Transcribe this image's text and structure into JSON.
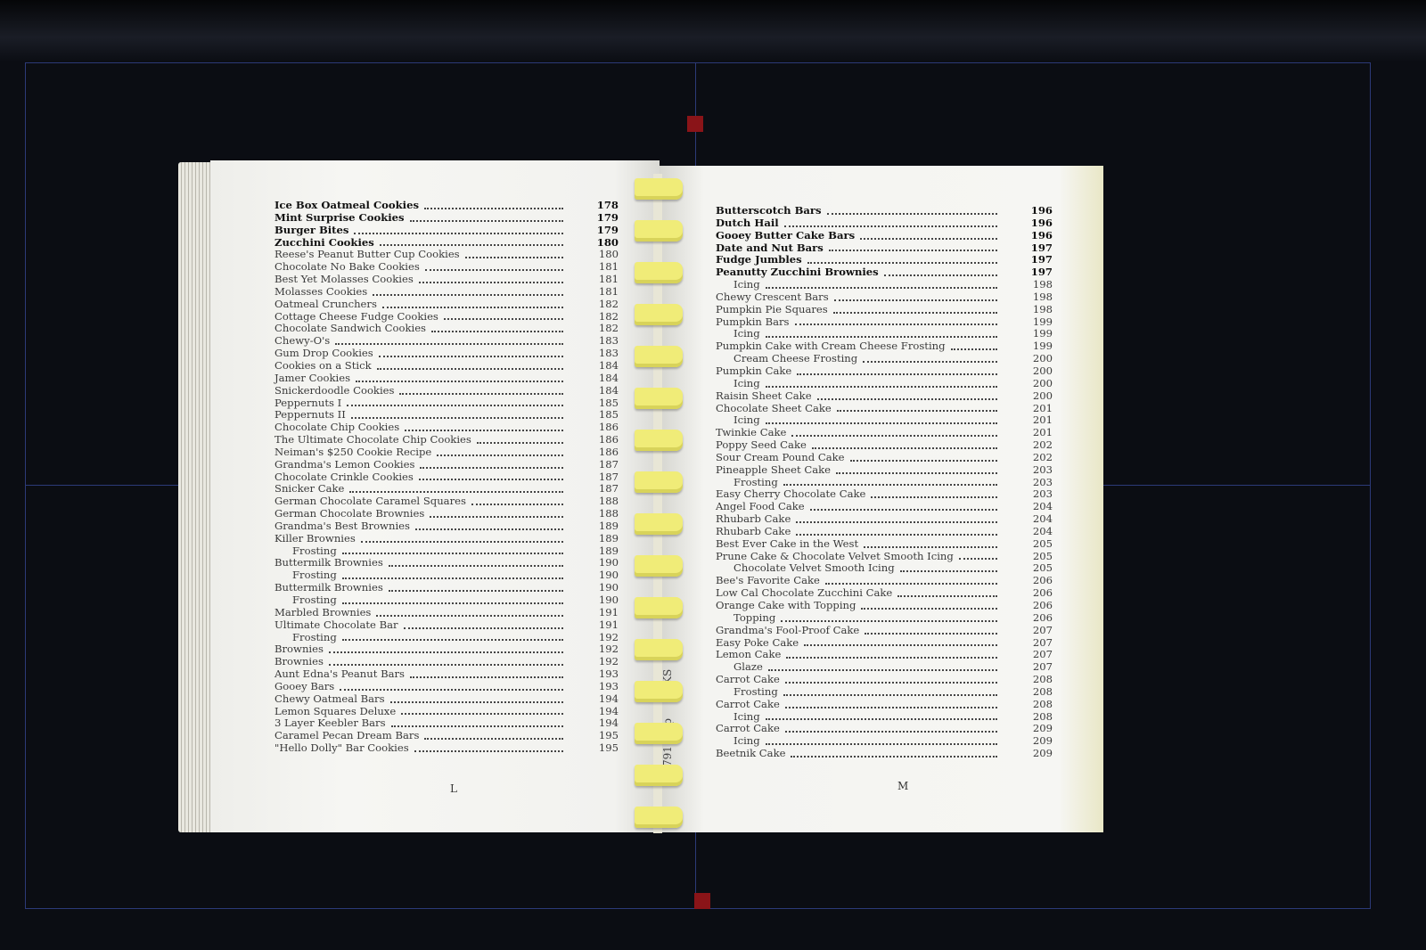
{
  "left_page": {
    "letter": "L",
    "entries": [
      {
        "title": "Ice Box Oatmeal Cookies",
        "page": "178"
      },
      {
        "title": "Mint Surprise Cookies",
        "page": "179"
      },
      {
        "title": "Burger Bites",
        "page": "179"
      },
      {
        "title": "Zucchini Cookies",
        "page": "180"
      },
      {
        "title": "Reese's Peanut Butter Cup Cookies",
        "page": "180"
      },
      {
        "title": "Chocolate No Bake Cookies",
        "page": "181"
      },
      {
        "title": "Best Yet Molasses Cookies",
        "page": "181"
      },
      {
        "title": "Molasses Cookies",
        "page": "181"
      },
      {
        "title": "Oatmeal Crunchers",
        "page": "182"
      },
      {
        "title": "Cottage Cheese Fudge Cookies",
        "page": "182"
      },
      {
        "title": "Chocolate Sandwich Cookies",
        "page": "182"
      },
      {
        "title": "Chewy-O's",
        "page": "183"
      },
      {
        "title": "Gum Drop Cookies",
        "page": "183"
      },
      {
        "title": "Cookies on a Stick",
        "page": "184"
      },
      {
        "title": "Jamer Cookies",
        "page": "184"
      },
      {
        "title": "Snickerdoodle Cookies",
        "page": "184"
      },
      {
        "title": "Peppernuts I",
        "page": "185"
      },
      {
        "title": "Peppernuts II",
        "page": "185"
      },
      {
        "title": "Chocolate Chip Cookies",
        "page": "186"
      },
      {
        "title": "The Ultimate Chocolate Chip Cookies",
        "page": "186"
      },
      {
        "title": "Neiman's $250 Cookie Recipe",
        "page": "186"
      },
      {
        "title": "Grandma's Lemon Cookies",
        "page": "187"
      },
      {
        "title": "Chocolate Crinkle Cookies",
        "page": "187"
      },
      {
        "title": "Snicker Cake",
        "page": "187"
      },
      {
        "title": "German Chocolate Caramel Squares",
        "page": "188"
      },
      {
        "title": "German Chocolate Brownies",
        "page": "188"
      },
      {
        "title": "Grandma's Best Brownies",
        "page": "189"
      },
      {
        "title": "Killer Brownies",
        "page": "189"
      },
      {
        "title": "Frosting",
        "page": "189",
        "sub": true
      },
      {
        "title": "Buttermilk Brownies",
        "page": "190"
      },
      {
        "title": "Frosting",
        "page": "190",
        "sub": true
      },
      {
        "title": "Buttermilk Brownies",
        "page": "190"
      },
      {
        "title": "Frosting",
        "page": "190",
        "sub": true
      },
      {
        "title": "Marbled Brownies",
        "page": "191"
      },
      {
        "title": "Ultimate Chocolate Bar",
        "page": "191"
      },
      {
        "title": "Frosting",
        "page": "192",
        "sub": true
      },
      {
        "title": "Brownies",
        "page": "192"
      },
      {
        "title": "Brownies",
        "page": "192"
      },
      {
        "title": "Aunt Edna's Peanut Bars",
        "page": "193"
      },
      {
        "title": "Gooey Bars",
        "page": "193"
      },
      {
        "title": "Chewy Oatmeal Bars",
        "page": "194"
      },
      {
        "title": "Lemon Squares Deluxe",
        "page": "194"
      },
      {
        "title": "3 Layer Keebler Bars",
        "page": "194"
      },
      {
        "title": "Caramel Pecan Dream Bars",
        "page": "195"
      },
      {
        "title": "\"Hello Dolly\" Bar Cookies",
        "page": "195"
      }
    ]
  },
  "right_page": {
    "letter": "M",
    "entries": [
      {
        "title": "Butterscotch Bars",
        "page": "196"
      },
      {
        "title": "Dutch Hail",
        "page": "196"
      },
      {
        "title": "Gooey Butter Cake Bars",
        "page": "196"
      },
      {
        "title": "Date and Nut Bars",
        "page": "197"
      },
      {
        "title": "Fudge Jumbles",
        "page": "197"
      },
      {
        "title": "Peanutty Zucchini Brownies",
        "page": "197"
      },
      {
        "title": "Icing",
        "page": "198",
        "sub": true
      },
      {
        "title": "Chewy Crescent Bars",
        "page": "198"
      },
      {
        "title": "Pumpkin Pie Squares",
        "page": "198"
      },
      {
        "title": "Pumpkin Bars",
        "page": "199"
      },
      {
        "title": "Icing",
        "page": "199",
        "sub": true
      },
      {
        "title": "Pumpkin Cake with Cream Cheese Frosting",
        "page": "199"
      },
      {
        "title": "Cream Cheese Frosting",
        "page": "200",
        "sub": true
      },
      {
        "title": "Pumpkin Cake",
        "page": "200"
      },
      {
        "title": "Icing",
        "page": "200",
        "sub": true
      },
      {
        "title": "Raisin Sheet Cake",
        "page": "200"
      },
      {
        "title": "Chocolate Sheet Cake",
        "page": "201"
      },
      {
        "title": "Icing",
        "page": "201",
        "sub": true
      },
      {
        "title": "Twinkie Cake",
        "page": "201"
      },
      {
        "title": "Poppy Seed Cake",
        "page": "202"
      },
      {
        "title": "Sour Cream Pound Cake",
        "page": "202"
      },
      {
        "title": "Pineapple Sheet Cake",
        "page": "203"
      },
      {
        "title": "Frosting",
        "page": "203",
        "sub": true
      },
      {
        "title": "Easy Cherry Chocolate Cake",
        "page": "203"
      },
      {
        "title": "Angel Food Cake",
        "page": "204"
      },
      {
        "title": "Rhubarb Cake",
        "page": "204"
      },
      {
        "title": "Rhubarb Cake",
        "page": "204"
      },
      {
        "title": "Best Ever Cake  in the West",
        "page": "205"
      },
      {
        "title": "Prune Cake & Chocolate Velvet Smooth Icing",
        "page": "205"
      },
      {
        "title": "Chocolate Velvet Smooth Icing",
        "page": "205",
        "sub": true
      },
      {
        "title": "Bee's Favorite Cake",
        "page": "206"
      },
      {
        "title": "Low Cal Chocolate Zucchini Cake",
        "page": "206"
      },
      {
        "title": "Orange Cake with Topping",
        "page": "206"
      },
      {
        "title": "Topping",
        "page": "206",
        "sub": true
      },
      {
        "title": "Grandma's Fool-Proof Cake",
        "page": "207"
      },
      {
        "title": "Easy Poke Cake",
        "page": "207"
      },
      {
        "title": "Lemon Cake",
        "page": "207"
      },
      {
        "title": "Glaze",
        "page": "207",
        "sub": true
      },
      {
        "title": "Carrot Cake",
        "page": "208"
      },
      {
        "title": "Frosting",
        "page": "208",
        "sub": true
      },
      {
        "title": "Carrot Cake",
        "page": "208"
      },
      {
        "title": "Icing",
        "page": "208",
        "sub": true
      },
      {
        "title": "Carrot Cake",
        "page": "209"
      },
      {
        "title": "Icing",
        "page": "209",
        "sub": true
      },
      {
        "title": "Beetnik Cake",
        "page": "209"
      }
    ]
  },
  "spine_text": [
    "791",
    "Top",
    "KS"
  ],
  "colors": {
    "background": "#0b0d13",
    "frame": "#2c3a78",
    "marker": "#8a1418",
    "binding": "#f0ec78",
    "paper": "#f4f4f1"
  }
}
